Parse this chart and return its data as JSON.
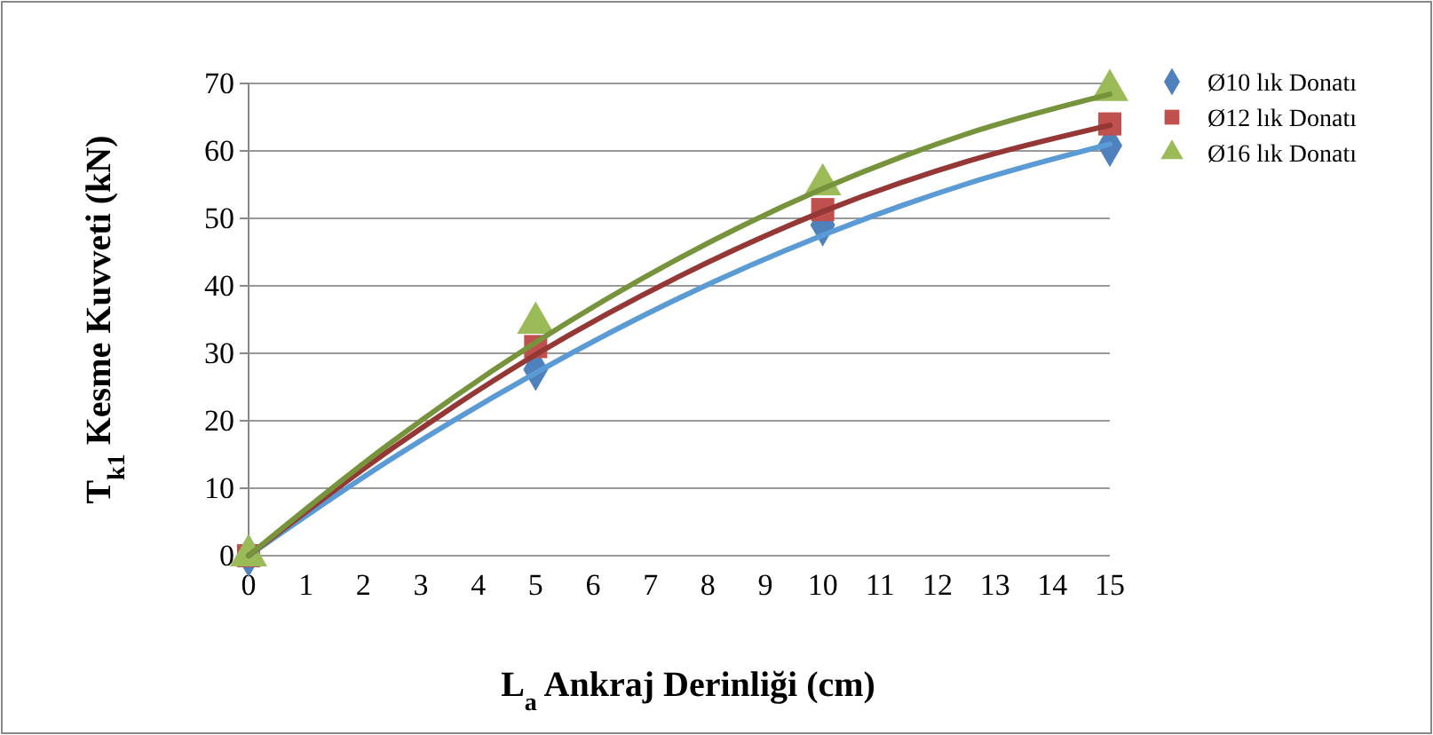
{
  "chart_data": {
    "type": "scatter",
    "xlabel": "L$_{a}$ Ankraj Derinliği (cm)",
    "ylabel": "T$_{k1}$ Kesme Kuvveti (kN)",
    "xlim": [
      0,
      15
    ],
    "xticks": [
      0,
      1,
      2,
      3,
      4,
      5,
      6,
      7,
      8,
      9,
      10,
      11,
      12,
      13,
      14,
      15
    ],
    "ylim": [
      0,
      70
    ],
    "yticks": [
      0,
      10,
      20,
      30,
      40,
      50,
      60,
      70
    ],
    "grid": "y",
    "legend": "right",
    "series": [
      {
        "type": "line",
        "color": "#5b9bd5",
        "x": [
          0,
          2.5,
          5,
          7.5,
          10,
          12.5,
          15
        ],
        "values": [
          0,
          14.4,
          27.1,
          38.2,
          47.5,
          55.1,
          61
        ]
      },
      {
        "type": "line",
        "color": "#953735",
        "x": [
          0,
          2.5,
          5,
          7.5,
          10,
          12.5,
          15
        ],
        "values": [
          0,
          15.9,
          29.8,
          41.4,
          51,
          58.4,
          63.8
        ]
      },
      {
        "type": "line",
        "color": "#77933c",
        "x": [
          0,
          2.5,
          5,
          7.5,
          10,
          12.5,
          15
        ],
        "values": [
          0,
          16.9,
          31.6,
          44.1,
          54.4,
          62.5,
          68.4
        ]
      },
      {
        "name": "Ø10 lık Donatı",
        "type": "scatter",
        "marker": "diamond",
        "color": "#4f81bd",
        "x": [
          0,
          5,
          10,
          15
        ],
        "values": [
          0,
          27.6,
          49,
          60.8
        ]
      },
      {
        "name": "Ø12 lık Donatı",
        "type": "scatter",
        "marker": "square",
        "color": "#c0504d",
        "x": [
          0,
          5,
          10,
          15
        ],
        "values": [
          0,
          31,
          51.3,
          64
        ]
      },
      {
        "name": "Ø16 lık Donatı",
        "type": "scatter",
        "marker": "triangle",
        "color": "#9bbb59",
        "x": [
          0,
          5,
          10,
          15
        ],
        "values": [
          0,
          34.5,
          55,
          69
        ]
      }
    ]
  }
}
